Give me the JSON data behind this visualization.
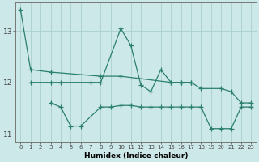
{
  "xlabel": "Humidex (Indice chaleur)",
  "line_color": "#2a7f6f",
  "bg_color": "#cde8e8",
  "grid_color_major": "#aacfcf",
  "grid_color_minor": "#bbdcdc",
  "ylim": [
    10.85,
    13.55
  ],
  "xlim": [
    -0.5,
    23.5
  ],
  "yticks": [
    11,
    12,
    13
  ],
  "xticks": [
    0,
    1,
    2,
    3,
    4,
    5,
    6,
    7,
    8,
    9,
    10,
    11,
    12,
    13,
    14,
    15,
    16,
    17,
    18,
    19,
    20,
    21,
    22,
    23
  ],
  "s1x": [
    0,
    1,
    3,
    8,
    10,
    15,
    16,
    17
  ],
  "s1y": [
    13.42,
    12.25,
    12.2,
    12.12,
    12.12,
    12.0,
    12.0,
    12.0
  ],
  "s2x": [
    1,
    3,
    4,
    7,
    8,
    10,
    11,
    12,
    13,
    14,
    15,
    16,
    17,
    18,
    20,
    21,
    22,
    23
  ],
  "s2y": [
    12.0,
    12.0,
    12.0,
    12.0,
    12.0,
    13.05,
    12.72,
    11.95,
    11.82,
    12.25,
    12.0,
    12.0,
    12.0,
    11.88,
    11.88,
    11.82,
    11.6,
    11.6
  ],
  "s3x": [
    3,
    4,
    5,
    6,
    8,
    9,
    10,
    11,
    12,
    13,
    14,
    15,
    16,
    17,
    18,
    19,
    20,
    21,
    22,
    23
  ],
  "s3y": [
    11.6,
    11.52,
    11.15,
    11.15,
    11.52,
    11.52,
    11.55,
    11.55,
    11.52,
    11.52,
    11.52,
    11.52,
    11.52,
    11.52,
    11.52,
    11.1,
    11.1,
    11.1,
    11.52,
    11.52
  ]
}
